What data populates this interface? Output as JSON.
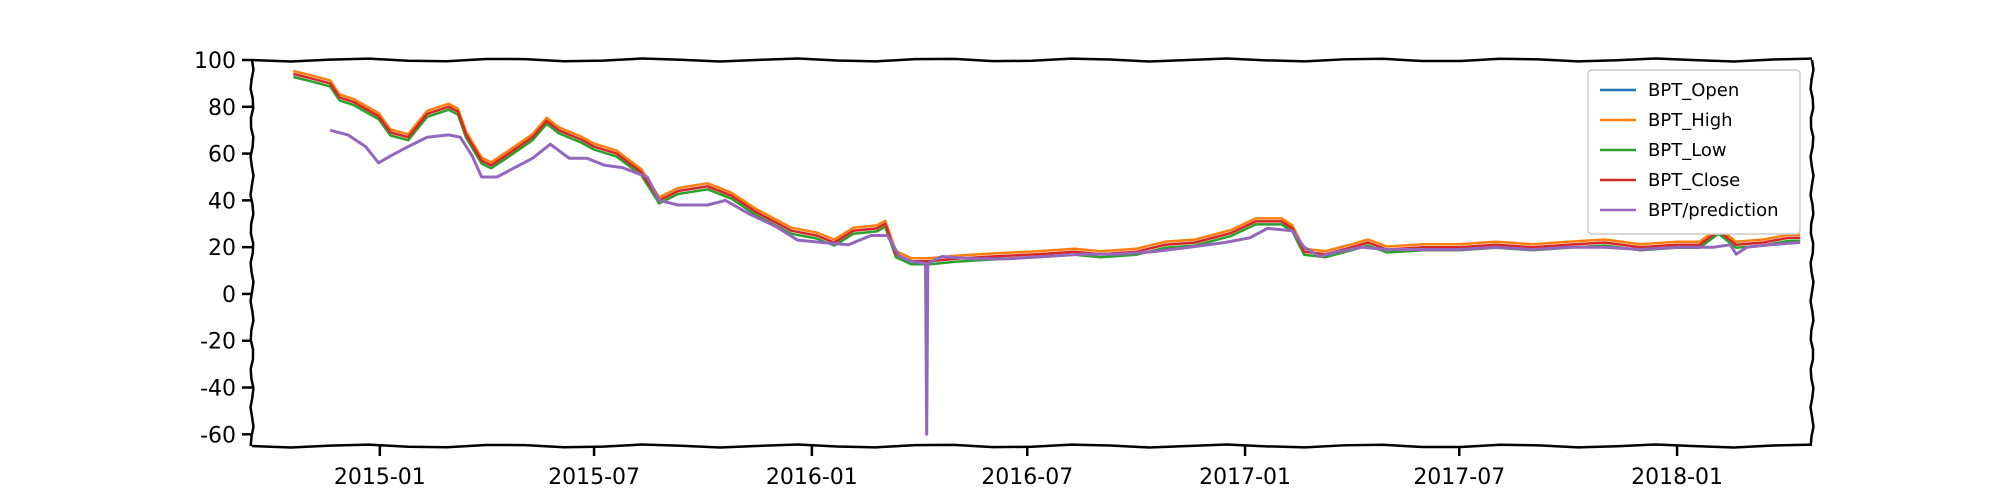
{
  "chart_data": {
    "type": "line",
    "title": "",
    "xlabel": "",
    "ylabel": "",
    "ylim": [
      -65,
      100
    ],
    "xlim": [
      "2014-09-15",
      "2018-04-25"
    ],
    "yticks": [
      100,
      80,
      60,
      40,
      20,
      0,
      -20,
      -40,
      -60
    ],
    "xticks": [
      "2015-01",
      "2015-07",
      "2016-01",
      "2016-07",
      "2017-01",
      "2017-07",
      "2018-01"
    ],
    "grid": false,
    "legend_position": "top-right",
    "series": [
      {
        "name": "BPT_Close",
        "color": "#d62728",
        "points": [
          [
            "2014-10-20",
            94
          ],
          [
            "2014-11-05",
            92
          ],
          [
            "2014-11-20",
            90
          ],
          [
            "2014-11-28",
            84
          ],
          [
            "2014-12-10",
            82
          ],
          [
            "2014-12-31",
            76
          ],
          [
            "2015-01-10",
            69
          ],
          [
            "2015-01-25",
            67
          ],
          [
            "2015-02-10",
            77
          ],
          [
            "2015-02-28",
            80
          ],
          [
            "2015-03-08",
            78
          ],
          [
            "2015-03-15",
            68
          ],
          [
            "2015-03-28",
            57
          ],
          [
            "2015-04-05",
            55
          ],
          [
            "2015-04-20",
            60
          ],
          [
            "2015-05-10",
            67
          ],
          [
            "2015-05-22",
            74
          ],
          [
            "2015-06-01",
            70
          ],
          [
            "2015-06-20",
            66
          ],
          [
            "2015-07-01",
            63
          ],
          [
            "2015-07-20",
            60
          ],
          [
            "2015-08-10",
            52
          ],
          [
            "2015-08-25",
            40
          ],
          [
            "2015-09-10",
            44
          ],
          [
            "2015-10-05",
            46
          ],
          [
            "2015-10-25",
            42
          ],
          [
            "2015-11-15",
            35
          ],
          [
            "2015-12-15",
            27
          ],
          [
            "2016-01-05",
            25
          ],
          [
            "2016-01-20",
            22
          ],
          [
            "2016-02-05",
            27
          ],
          [
            "2016-02-25",
            28
          ],
          [
            "2016-03-03",
            30
          ],
          [
            "2016-03-12",
            17
          ],
          [
            "2016-03-25",
            14
          ],
          [
            "2016-04-10",
            14
          ],
          [
            "2016-05-01",
            15
          ],
          [
            "2016-06-01",
            16
          ],
          [
            "2016-07-10",
            17
          ],
          [
            "2016-08-10",
            18
          ],
          [
            "2016-09-01",
            17
          ],
          [
            "2016-10-01",
            18
          ],
          [
            "2016-10-25",
            21
          ],
          [
            "2016-11-20",
            22
          ],
          [
            "2016-12-20",
            26
          ],
          [
            "2017-01-10",
            31
          ],
          [
            "2017-02-01",
            31
          ],
          [
            "2017-02-10",
            28
          ],
          [
            "2017-02-20",
            18
          ],
          [
            "2017-03-10",
            17
          ],
          [
            "2017-04-01",
            20
          ],
          [
            "2017-04-15",
            22
          ],
          [
            "2017-05-01",
            19
          ],
          [
            "2017-06-01",
            20
          ],
          [
            "2017-07-01",
            20
          ],
          [
            "2017-08-01",
            21
          ],
          [
            "2017-09-01",
            20
          ],
          [
            "2017-10-01",
            21
          ],
          [
            "2017-11-01",
            22
          ],
          [
            "2017-12-01",
            20
          ],
          [
            "2018-01-01",
            21
          ],
          [
            "2018-01-20",
            21
          ],
          [
            "2018-02-05",
            27
          ],
          [
            "2018-02-20",
            21
          ],
          [
            "2018-03-15",
            22
          ],
          [
            "2018-04-05",
            24
          ],
          [
            "2018-04-15",
            24
          ]
        ]
      },
      {
        "name": "BPT/prediction",
        "color": "#9467bd",
        "points": [
          [
            "2014-11-20",
            70
          ],
          [
            "2014-12-05",
            68
          ],
          [
            "2014-12-20",
            63
          ],
          [
            "2014-12-31",
            56
          ],
          [
            "2015-01-10",
            59
          ],
          [
            "2015-01-25",
            63
          ],
          [
            "2015-02-10",
            67
          ],
          [
            "2015-02-28",
            68
          ],
          [
            "2015-03-10",
            67
          ],
          [
            "2015-03-20",
            59
          ],
          [
            "2015-03-28",
            50
          ],
          [
            "2015-04-10",
            50
          ],
          [
            "2015-04-25",
            54
          ],
          [
            "2015-05-10",
            58
          ],
          [
            "2015-05-25",
            64
          ],
          [
            "2015-06-10",
            58
          ],
          [
            "2015-06-25",
            58
          ],
          [
            "2015-07-10",
            55
          ],
          [
            "2015-07-25",
            54
          ],
          [
            "2015-08-15",
            50
          ],
          [
            "2015-08-25",
            40
          ],
          [
            "2015-09-10",
            38
          ],
          [
            "2015-10-05",
            38
          ],
          [
            "2015-10-20",
            40
          ],
          [
            "2015-11-10",
            34
          ],
          [
            "2015-12-01",
            29
          ],
          [
            "2015-12-20",
            23
          ],
          [
            "2016-01-10",
            22
          ],
          [
            "2016-02-01",
            21
          ],
          [
            "2016-02-20",
            25
          ],
          [
            "2016-03-05",
            25
          ],
          [
            "2016-03-15",
            16
          ],
          [
            "2016-03-25",
            14
          ],
          [
            "2016-04-06",
            13
          ],
          [
            "2016-04-07",
            -60
          ],
          [
            "2016-04-08",
            13
          ],
          [
            "2016-04-20",
            16
          ],
          [
            "2016-05-15",
            15
          ],
          [
            "2016-06-15",
            15
          ],
          [
            "2016-07-15",
            16
          ],
          [
            "2016-08-15",
            17
          ],
          [
            "2016-09-15",
            17
          ],
          [
            "2016-10-15",
            18
          ],
          [
            "2016-11-15",
            20
          ],
          [
            "2016-12-15",
            22
          ],
          [
            "2017-01-05",
            24
          ],
          [
            "2017-01-20",
            28
          ],
          [
            "2017-02-10",
            27
          ],
          [
            "2017-02-20",
            20
          ],
          [
            "2017-03-05",
            16
          ],
          [
            "2017-03-20",
            18
          ],
          [
            "2017-04-10",
            20
          ],
          [
            "2017-05-01",
            19
          ],
          [
            "2017-06-01",
            19
          ],
          [
            "2017-07-01",
            19
          ],
          [
            "2017-08-01",
            20
          ],
          [
            "2017-09-01",
            19
          ],
          [
            "2017-10-01",
            20
          ],
          [
            "2017-11-01",
            20
          ],
          [
            "2017-12-01",
            19
          ],
          [
            "2018-01-01",
            20
          ],
          [
            "2018-02-01",
            20
          ],
          [
            "2018-02-15",
            21
          ],
          [
            "2018-02-20",
            17
          ],
          [
            "2018-03-01",
            20
          ],
          [
            "2018-03-20",
            21
          ],
          [
            "2018-04-15",
            22
          ]
        ]
      },
      {
        "name": "BPT_High",
        "color": "#ff7f0e",
        "points": [],
        "note_like": "tracks BPT_Close slightly above"
      },
      {
        "name": "BPT_Low",
        "color": "#2ca02c",
        "points": []
      },
      {
        "name": "BPT_Open",
        "color": "#1f77b4",
        "points": []
      }
    ],
    "legend": [
      "BPT_Open",
      "BPT_High",
      "BPT_Low",
      "BPT_Close",
      "BPT/prediction"
    ]
  }
}
